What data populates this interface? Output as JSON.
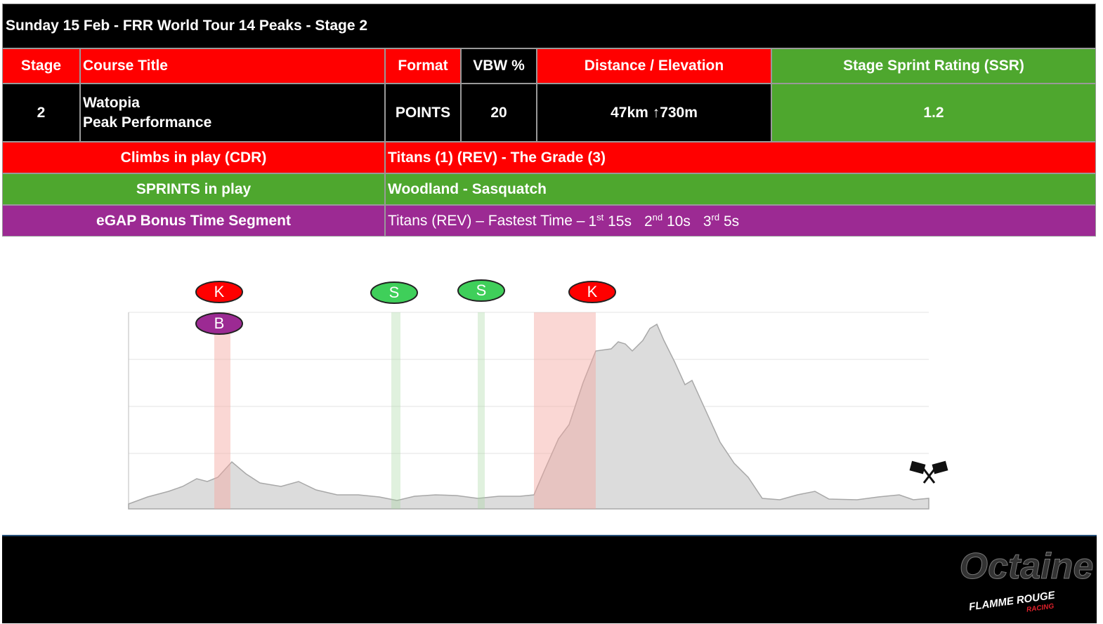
{
  "header": {
    "title": "Sunday 15 Feb - FRR World Tour 14 Peaks - Stage 2"
  },
  "table": {
    "headers": [
      "Stage",
      "Course Title",
      "Format",
      "VBW %",
      "Distance / Elevation",
      "Stage Sprint Rating (SSR)"
    ],
    "row": {
      "stage": 2,
      "course_lines": [
        "Watopia",
        "Peak Performance"
      ],
      "format": "POINTS",
      "vbw": 20,
      "distance": "47km ↑730m",
      "ssr": 1.2
    },
    "climbs": {
      "label": "Climbs in play (CDR)",
      "value": "Titans (1) (REV) - The Grade (3)"
    },
    "sprints": {
      "label": "SPRINTS in play",
      "value": "Woodland - Sasquatch"
    },
    "egap": {
      "label": "eGAP Bonus Time Segment",
      "prefix": "Titans (REV) – Fastest Time –",
      "places": [
        {
          "rank": 1,
          "suffix": "st",
          "bonus": "15s"
        },
        {
          "rank": 2,
          "suffix": "nd",
          "bonus": "10s"
        },
        {
          "rank": 3,
          "suffix": "rd",
          "bonus": "5s"
        }
      ]
    }
  },
  "markers": [
    "K",
    "B",
    "S",
    "S",
    "K"
  ],
  "logo": {
    "name": "Octaine",
    "line1": "FLAMME ROUGE",
    "line2": "RACING"
  }
}
